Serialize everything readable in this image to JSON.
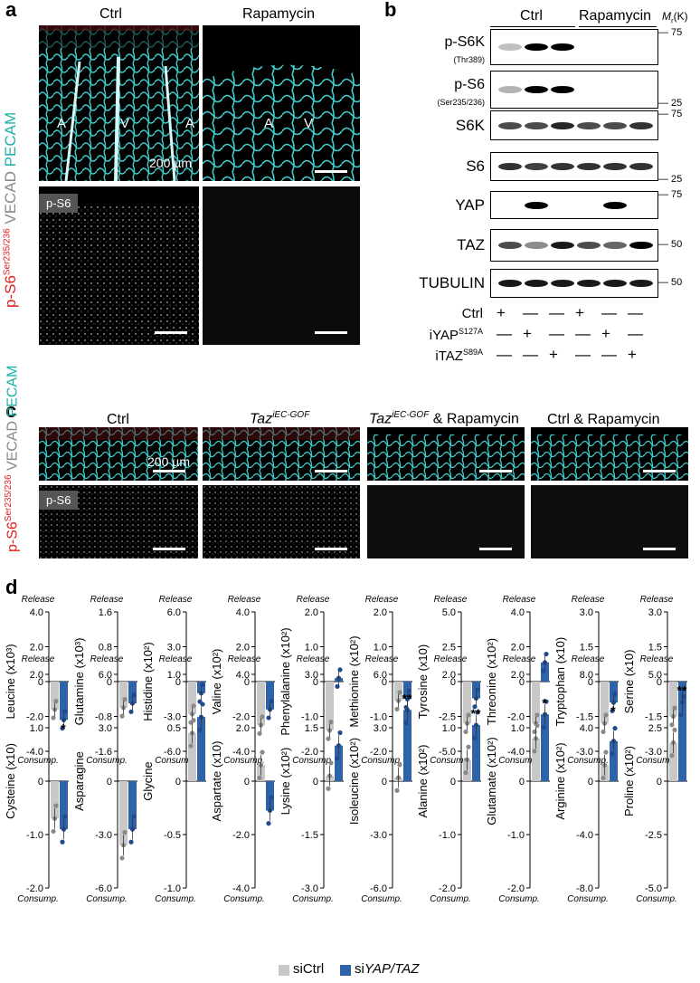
{
  "panel_a": {
    "letter": "a",
    "titles": [
      "Ctrl",
      "Rapamycin"
    ],
    "side_label_parts": [
      "p-S6",
      "Ser235/236",
      " VECAD ",
      "PECAM"
    ],
    "vessel_marks_left": [
      "A",
      "V",
      "A"
    ],
    "vessel_marks_right": [
      "A",
      "V"
    ],
    "scale_text": "200 µm",
    "inset_label": "p-S6"
  },
  "panel_b": {
    "letter": "b",
    "group_labels": [
      "Ctrl",
      "Rapamycin"
    ],
    "mw_header": "Mr(K)",
    "mw_header_main": "M",
    "mw_header_sub": "r",
    "mw_header_tail": "(K)",
    "blots": [
      {
        "name": "p-S6K",
        "sub": "(Thr389)",
        "markers": [
          "75"
        ]
      },
      {
        "name": "p-S6",
        "sub": "(Ser235/236)",
        "markers": [
          "25"
        ]
      },
      {
        "name": "S6K",
        "sub": "",
        "markers": [
          "75"
        ]
      },
      {
        "name": "S6",
        "sub": "",
        "markers": [
          "25"
        ]
      },
      {
        "name": "YAP",
        "sub": "",
        "markers": [
          "75"
        ]
      },
      {
        "name": "TAZ",
        "sub": "",
        "markers": [
          "50"
        ]
      },
      {
        "name": "TUBULIN",
        "sub": "",
        "markers": [
          "50"
        ]
      }
    ],
    "condition_rows": [
      {
        "name": "Ctrl",
        "sup": "",
        "signs": [
          "+",
          "—",
          "—",
          "+",
          "—",
          "—"
        ]
      },
      {
        "name": "iYAP",
        "sup": "S127A",
        "signs": [
          "—",
          "+",
          "—",
          "—",
          "+",
          "—"
        ]
      },
      {
        "name": "iTAZ",
        "sup": "S89A",
        "signs": [
          "—",
          "—",
          "+",
          "—",
          "—",
          "+"
        ]
      }
    ]
  },
  "panel_c": {
    "letter": "c",
    "titles": [
      "Ctrl",
      "Taz",
      "Taz",
      "Ctrl & Rapamycin"
    ],
    "title_sups": [
      "",
      "iEC-GOF",
      "iEC-GOF",
      ""
    ],
    "title_suffix": [
      "",
      "",
      " & Rapamycin",
      ""
    ],
    "side_label_parts": [
      "p-S6",
      "Ser235/236",
      " VECAD ",
      "PECAM"
    ],
    "scale_text": "200 µm",
    "inset_label": "p-S6"
  },
  "panel_d": {
    "letter": "d",
    "release_label": "Release",
    "consump_label": "Consump.",
    "legend": [
      {
        "label": "siCtrl",
        "color": "#c8c8c8"
      },
      {
        "label": "siYAP/TAZ",
        "prefix": "si",
        "italic": "YAP/TAZ",
        "color": "#2f63a9"
      }
    ],
    "colors": {
      "ctrl_bar": "#c8c8c8",
      "kd_bar": "#2f63a9",
      "ctrl_dot": "#8a8a8a",
      "kd_dot": "#1f4b8c"
    }
  },
  "chart_data": [
    {
      "type": "bar",
      "ylabel": "Leucine (x10³)",
      "ylim": [
        -4,
        4
      ],
      "ticks": [
        "4.0",
        "2.0",
        "0",
        "-2.0",
        "-4.0"
      ],
      "categories": [
        "siCtrl",
        "siYAP/TAZ"
      ],
      "values": [
        -1.6,
        -2.2
      ],
      "sig": "*"
    },
    {
      "type": "bar",
      "ylabel": "Glutamine (x10³)",
      "ylim": [
        -1.6,
        1.6
      ],
      "ticks": [
        "1.6",
        "0.8",
        "0",
        "-0.8",
        "-1.6"
      ],
      "categories": [
        "siCtrl",
        "siYAP/TAZ"
      ],
      "values": [
        -0.6,
        -0.5
      ],
      "sig": ""
    },
    {
      "type": "bar",
      "ylabel": "Histidine (x10²)",
      "ylim": [
        -6,
        6
      ],
      "ticks": [
        "6.0",
        "3.0",
        "0",
        "-3.0",
        "-6.0"
      ],
      "categories": [
        "siCtrl",
        "siYAP/TAZ"
      ],
      "values": [
        -2.8,
        -1.0
      ],
      "sig": ""
    },
    {
      "type": "bar",
      "ylabel": "Valine (x10²)",
      "ylim": [
        -4,
        4
      ],
      "ticks": [
        "4.0",
        "2.0",
        "0",
        "-2.0",
        "-4.0"
      ],
      "categories": [
        "siCtrl",
        "siYAP/TAZ"
      ],
      "values": [
        -2.5,
        -1.6
      ],
      "sig": ""
    },
    {
      "type": "bar",
      "ylabel": "Phenylalanine (x10²)",
      "ylim": [
        -2,
        2
      ],
      "ticks": [
        "2.0",
        "1.0",
        "0",
        "-1.0",
        "-2.0"
      ],
      "categories": [
        "siCtrl",
        "siYAP/TAZ"
      ],
      "values": [
        -1.4,
        0.1
      ],
      "sig": ""
    },
    {
      "type": "bar",
      "ylabel": "Methionine (x10²)",
      "ylim": [
        -2,
        2
      ],
      "ticks": [
        "2.0",
        "1.0",
        "0",
        "-1.0",
        "-2.0"
      ],
      "categories": [
        "siCtrl",
        "siYAP/TAZ"
      ],
      "values": [
        -0.55,
        -0.5
      ],
      "sig": ""
    },
    {
      "type": "bar",
      "ylabel": "Tyrosine (x10)",
      "ylim": [
        -5,
        5
      ],
      "ticks": [
        "5.0",
        "2.5",
        "0",
        "-2.5",
        "-5.0"
      ],
      "categories": [
        "siCtrl",
        "siYAP/TAZ"
      ],
      "values": [
        -3.0,
        -1.2
      ],
      "sig": ""
    },
    {
      "type": "bar",
      "ylabel": "Threonine (x10²)",
      "ylim": [
        -4,
        4
      ],
      "ticks": [
        "4.0",
        "2.0",
        "0",
        "-2.0",
        "-4.0"
      ],
      "categories": [
        "siCtrl",
        "siYAP/TAZ"
      ],
      "values": [
        -2.4,
        1.1
      ],
      "sig": ""
    },
    {
      "type": "bar",
      "ylabel": "Tryptophan (x10)",
      "ylim": [
        -3,
        3
      ],
      "ticks": [
        "3.0",
        "1.5",
        "0",
        "-1.5",
        "-3.0"
      ],
      "categories": [
        "siCtrl",
        "siYAP/TAZ"
      ],
      "values": [
        -1.8,
        -0.9
      ],
      "sig": "*"
    },
    {
      "type": "bar",
      "ylabel": "Serine (x10)",
      "ylim": [
        -3,
        3
      ],
      "ticks": [
        "3.0",
        "1.5",
        "0",
        "-1.5",
        "-3.0"
      ],
      "categories": [
        "siCtrl",
        "siYAP/TAZ"
      ],
      "values": [
        -1.5,
        -1.0
      ],
      "sig": ""
    },
    {
      "type": "bar",
      "ylabel": "Cysteine (x10)",
      "ylim": [
        -2,
        2
      ],
      "ticks": [
        "2.0",
        "1.0",
        "0",
        "-1.0",
        "-2.0"
      ],
      "categories": [
        "siCtrl",
        "siYAP/TAZ"
      ],
      "values": [
        -0.7,
        -0.9
      ],
      "sig": ""
    },
    {
      "type": "bar",
      "ylabel": "Asparagine",
      "ylim": [
        -6,
        6
      ],
      "ticks": [
        "6.0",
        "3.0",
        "0",
        "-3.0",
        "-6.0"
      ],
      "categories": [
        "siCtrl",
        "siYAP/TAZ"
      ],
      "values": [
        -3.6,
        -2.7
      ],
      "sig": ""
    },
    {
      "type": "bar",
      "ylabel": "Glycine",
      "ylim": [
        -1,
        1
      ],
      "ticks": [
        "1.0",
        "0.5",
        "0",
        "-0.5",
        "-1.0"
      ],
      "categories": [
        "siCtrl",
        "siYAP/TAZ"
      ],
      "values": [
        0.45,
        0.6
      ],
      "sig": ""
    },
    {
      "type": "bar",
      "ylabel": "Aspartate (x10)",
      "ylim": [
        -4,
        4
      ],
      "ticks": [
        "4.0",
        "2.0",
        "0",
        "-2.0",
        "-4.0"
      ],
      "categories": [
        "siCtrl",
        "siYAP/TAZ"
      ],
      "values": [
        0.6,
        -1.1
      ],
      "sig": ""
    },
    {
      "type": "bar",
      "ylabel": "Lysine (x10²)",
      "ylim": [
        -3,
        3
      ],
      "ticks": [
        "3.0",
        "1.5",
        "0",
        "-1.5",
        "-3.0"
      ],
      "categories": [
        "siCtrl",
        "siYAP/TAZ"
      ],
      "values": [
        0.15,
        1.0
      ],
      "sig": ""
    },
    {
      "type": "bar",
      "ylabel": "Isoleucine (x10²)",
      "ylim": [
        -6,
        6
      ],
      "ticks": [
        "6.0",
        "3.0",
        "0",
        "-3.0",
        "-6.0"
      ],
      "categories": [
        "siCtrl",
        "siYAP/TAZ"
      ],
      "values": [
        0.2,
        4.0
      ],
      "sig": "**"
    },
    {
      "type": "bar",
      "ylabel": "Alanine (x10²)",
      "ylim": [
        -2,
        2
      ],
      "ticks": [
        "2.0",
        "1.0",
        "0",
        "-1.0",
        "-2.0"
      ],
      "categories": [
        "siCtrl",
        "siYAP/TAZ"
      ],
      "values": [
        0.4,
        1.05
      ],
      "sig": "**"
    },
    {
      "type": "bar",
      "ylabel": "Glutamate (x10²)",
      "ylim": [
        -2,
        2
      ],
      "ticks": [
        "2.0",
        "1.0",
        "0",
        "-1.0",
        "-2.0"
      ],
      "categories": [
        "siCtrl",
        "siYAP/TAZ"
      ],
      "values": [
        0.8,
        1.25
      ],
      "sig": "*"
    },
    {
      "type": "bar",
      "ylabel": "Arginine (x10²)",
      "ylim": [
        -8,
        8
      ],
      "ticks": [
        "8.0",
        "4.0",
        "0",
        "-4.0",
        "-8.0"
      ],
      "categories": [
        "siCtrl",
        "siYAP/TAZ"
      ],
      "values": [
        1.2,
        3.0
      ],
      "sig": ""
    },
    {
      "type": "bar",
      "ylabel": "Proline (x10²)",
      "ylim": [
        -5,
        5
      ],
      "ticks": [
        "5.0",
        "2.5",
        "0",
        "-2.5",
        "-5.0"
      ],
      "categories": [
        "siCtrl",
        "siYAP/TAZ"
      ],
      "values": [
        1.8,
        3.7
      ],
      "sig": "**"
    }
  ]
}
